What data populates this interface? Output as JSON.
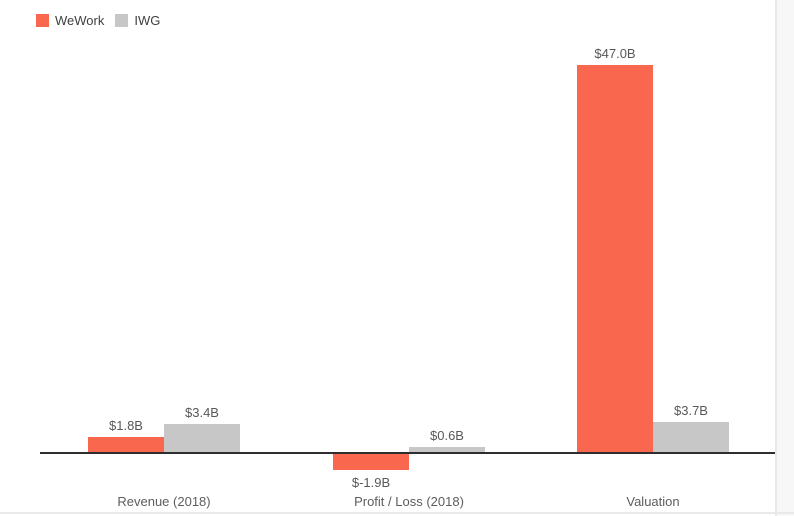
{
  "chart_data": {
    "type": "bar",
    "title": "",
    "categories": [
      "Revenue (2018)",
      "Profit / Loss (2018)",
      "Valuation"
    ],
    "series": [
      {
        "name": "WeWork",
        "color": "#f9684e",
        "values": [
          1.8,
          -1.9,
          47.0
        ],
        "value_labels": [
          "$1.8B",
          "$-1.9B",
          "$47.0B"
        ]
      },
      {
        "name": "IWG",
        "color": "#c7c7c7",
        "values": [
          3.4,
          0.6,
          3.7
        ],
        "value_labels": [
          "$3.4B",
          "$0.6B",
          "$3.7B"
        ]
      }
    ],
    "ylim": [
      -1.9,
      47.0
    ],
    "grid": false,
    "axis_line_color": "#2e2e2e",
    "legend_position": "top-left"
  }
}
